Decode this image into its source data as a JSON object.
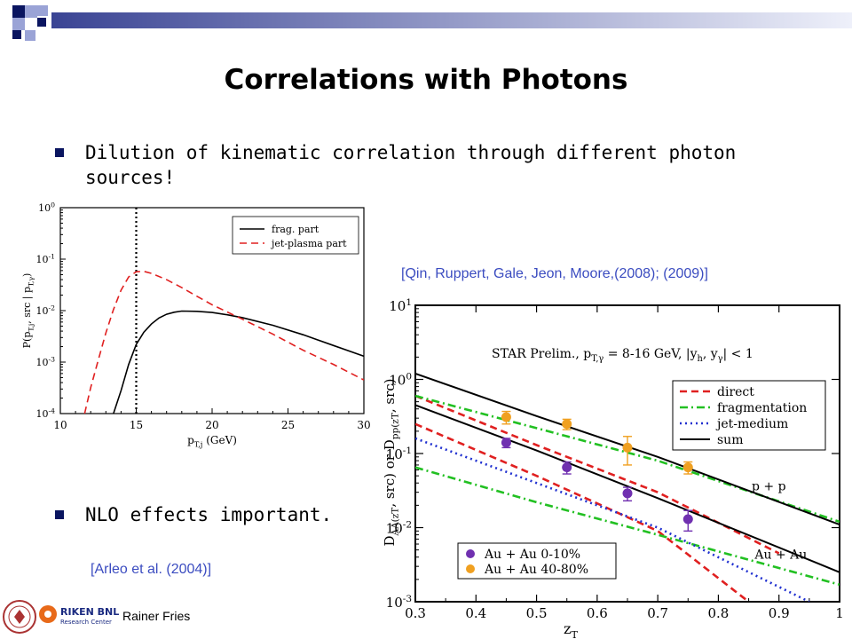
{
  "slide": {
    "title": "Correlations with Photons",
    "bullets": [
      "Dilution of kinematic correlation through different photon",
      "sources!",
      "NLO effects important."
    ],
    "citation_right": "[Qin, Ruppert, Gale, Jeon, Moore,(2008); (2009)]",
    "citation_left": "[Arleo et al. (2004)]",
    "author": "Rainer Fries",
    "logo_text": "RIKEN BNL",
    "logo_subtext": "Research Center",
    "colors": {
      "bullet": "#0a1560",
      "citation": "#3b4cc0",
      "deco_dark": "#0a1560",
      "deco_light": "#9aa3d6"
    }
  },
  "chart_data": [
    {
      "type": "line",
      "title": "",
      "xlabel": "p_{T,j} (GeV)",
      "ylabel": "P(p_{T,j}, src | p_{T,γ})",
      "xlim": [
        10,
        30
      ],
      "ylim": [
        0.0001,
        1
      ],
      "log_y": true,
      "x_ticks": [
        "10",
        "15",
        "20",
        "25",
        "30"
      ],
      "y_ticks": [
        "10^0",
        "10^-1",
        "10^-2",
        "10^-3",
        "10^-4"
      ],
      "vline_x": 15,
      "legend_position": "top-right",
      "series": [
        {
          "name": "frag. part",
          "color": "#000000",
          "dash": "solid",
          "x": [
            13.5,
            14,
            14.5,
            15,
            15.5,
            16,
            16.5,
            17,
            17.5,
            18,
            19,
            20,
            21,
            22,
            24,
            26,
            28,
            30
          ],
          "y": [
            0.0001,
            0.00028,
            0.0009,
            0.0022,
            0.0038,
            0.0055,
            0.0072,
            0.0085,
            0.0093,
            0.0098,
            0.0097,
            0.0092,
            0.0083,
            0.0073,
            0.0052,
            0.0034,
            0.0021,
            0.0013
          ]
        },
        {
          "name": "jet-plasma part",
          "color": "#e02020",
          "dash": "dashed",
          "x": [
            11.6,
            12,
            12.5,
            13,
            13.5,
            14,
            14.5,
            15,
            15.5,
            16,
            17,
            18,
            19,
            20,
            22,
            24,
            26,
            28,
            30
          ],
          "y": [
            0.0001,
            0.00032,
            0.0011,
            0.0037,
            0.0105,
            0.025,
            0.045,
            0.057,
            0.058,
            0.053,
            0.04,
            0.028,
            0.019,
            0.013,
            0.0068,
            0.0035,
            0.0017,
            0.0009,
            0.00045
          ]
        }
      ]
    },
    {
      "type": "line",
      "title": "STAR Prelim., p_{T,γ} = 8-16 GeV, |y_h, y_γ| < 1",
      "xlabel": "z_T",
      "ylabel": "D_AA(z_T, src) or D_pp(z_T, src)",
      "xlim": [
        0.3,
        1
      ],
      "ylim": [
        0.001,
        10
      ],
      "log_y": true,
      "x_ticks": [
        "0.3",
        "0.4",
        "0.5",
        "0.6",
        "0.7",
        "0.8",
        "0.9",
        "1"
      ],
      "y_ticks": [
        "10^1",
        "10^0",
        "10^-1",
        "10^-2",
        "10^-3"
      ],
      "legend_position": "right",
      "annotations": [
        "p + p",
        "Au + Au"
      ],
      "series": [
        {
          "name": "direct",
          "color": "#e02020",
          "dash": "dashed",
          "x": [
            0.3,
            0.5,
            0.7,
            0.9
          ],
          "y": [
            0.6,
            0.13,
            0.03,
            0.0045
          ]
        },
        {
          "name": "direct",
          "color": "#e02020",
          "dash": "dashed",
          "x": [
            0.3,
            0.5,
            0.7,
            0.85
          ],
          "y": [
            0.25,
            0.05,
            0.009,
            0.001
          ]
        },
        {
          "name": "fragmentation",
          "color": "#22c022",
          "dash": "dashdot",
          "x": [
            0.3,
            0.5,
            0.7,
            1
          ],
          "y": [
            0.6,
            0.22,
            0.08,
            0.012
          ]
        },
        {
          "name": "fragmentation",
          "color": "#22c022",
          "dash": "dashdot",
          "x": [
            0.3,
            0.5,
            0.7,
            1
          ],
          "y": [
            0.065,
            0.022,
            0.008,
            0.0017
          ]
        },
        {
          "name": "jet-medium",
          "color": "#2030d0",
          "dash": "dotted",
          "x": [
            0.3,
            0.5,
            0.7,
            0.95
          ],
          "y": [
            0.16,
            0.04,
            0.01,
            0.001
          ]
        },
        {
          "name": "sum",
          "color": "#000000",
          "dash": "solid",
          "x": [
            0.3,
            0.5,
            0.7,
            1
          ],
          "y": [
            1.2,
            0.32,
            0.09,
            0.011
          ]
        },
        {
          "name": "sum",
          "color": "#000000",
          "dash": "solid",
          "x": [
            0.3,
            0.5,
            0.7,
            1
          ],
          "y": [
            0.45,
            0.11,
            0.025,
            0.0025
          ]
        }
      ],
      "points": [
        {
          "name": "Au + Au 0-10%",
          "color": "#7030b0",
          "x": [
            0.45,
            0.55,
            0.65,
            0.75
          ],
          "y": [
            0.14,
            0.065,
            0.029,
            0.013
          ],
          "err": [
            0.02,
            0.012,
            0.006,
            0.004
          ]
        },
        {
          "name": "Au + Au 40-80%",
          "color": "#f0a020",
          "x": [
            0.45,
            0.55,
            0.65,
            0.75
          ],
          "y": [
            0.31,
            0.25,
            0.12,
            0.065
          ],
          "err": [
            0.06,
            0.04,
            0.05,
            0.012
          ]
        }
      ]
    }
  ]
}
